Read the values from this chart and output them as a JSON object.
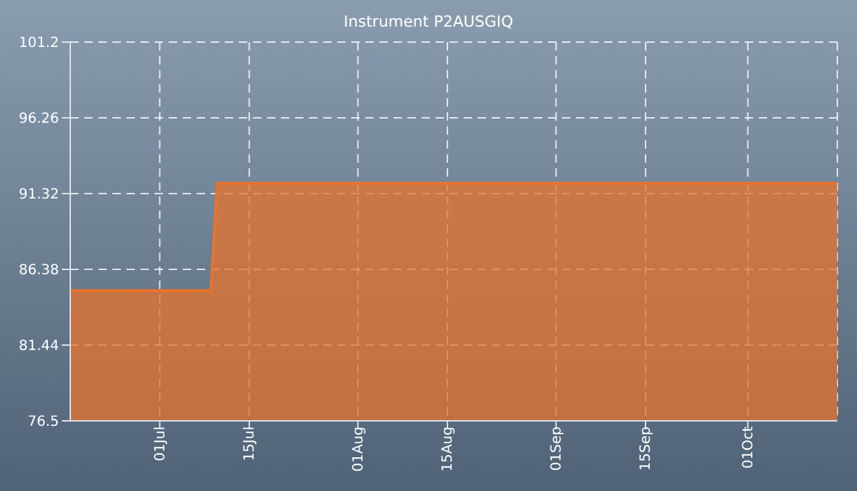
{
  "chart_data": {
    "type": "area",
    "title": "Instrument P2AUSGIQ",
    "x": [
      "--06-17",
      "--07-09",
      "--07-10",
      "--10-15"
    ],
    "series": [
      {
        "color": "#e8732c",
        "values": [
          85.0,
          85.0,
          92.0,
          92.0
        ]
      }
    ],
    "xlim": [
      "--06-17",
      "--10-15"
    ],
    "xticks": [
      {
        "value": "--07-01",
        "label": "01Jul"
      },
      {
        "value": "--07-15",
        "label": "15Jul"
      },
      {
        "value": "--08-01",
        "label": "01Aug"
      },
      {
        "value": "--08-15",
        "label": "15Aug"
      },
      {
        "value": "--09-01",
        "label": "01Sep"
      },
      {
        "value": "--09-15",
        "label": "15Sep"
      },
      {
        "value": "--10-01",
        "label": "01Oct"
      }
    ],
    "ylim": [
      76.5,
      101.2
    ],
    "yticks": [
      76.5,
      81.44,
      86.38,
      91.32,
      96.26,
      101.2
    ],
    "grid": true,
    "legend": false
  }
}
